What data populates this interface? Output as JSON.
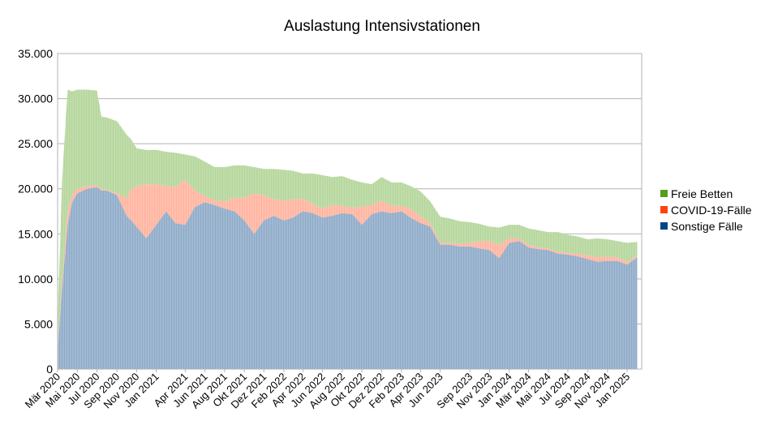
{
  "chart_data": {
    "type": "area",
    "stacked": true,
    "title": "Auslastung Intensivstationen",
    "xlabel": "",
    "ylabel": "",
    "ylim": [
      0,
      35000
    ],
    "yticks": [
      0,
      5000,
      10000,
      15000,
      20000,
      25000,
      30000,
      35000
    ],
    "ytick_labels": [
      "0",
      "5.000",
      "10.000",
      "15.000",
      "20.000",
      "25.000",
      "30.000",
      "35.000"
    ],
    "grid": true,
    "legend_position": "right",
    "xticks": [
      "Mär 2020",
      "Mai 2020",
      "Jul 2020",
      "Sep 2020",
      "Nov 2020",
      "Jan 2021",
      "Apr 2021",
      "Jun 2021",
      "Aug 2021",
      "Okt 2021",
      "Dez 2021",
      "Feb 2022",
      "Apr 2022",
      "Jun 2022",
      "Aug 2022",
      "Okt 2022",
      "Dez 2022",
      "Feb 2023",
      "Apr 2023",
      "Jun 2023",
      "Sep 2023",
      "Nov 2023",
      "Jan 2024",
      "Mär 2024",
      "Mai 2024",
      "Jul 2024",
      "Sep 2024",
      "Nov 2024",
      "Jan 2025"
    ],
    "x": [
      "2020-03",
      "2020-03-15",
      "2020-04",
      "2020-04-15",
      "2020-05",
      "2020-06",
      "2020-07",
      "2020-07-15",
      "2020-08",
      "2020-09",
      "2020-10",
      "2020-10-15",
      "2020-11",
      "2020-12",
      "2021-01",
      "2021-02",
      "2021-03",
      "2021-04",
      "2021-05",
      "2021-06",
      "2021-07",
      "2021-08",
      "2021-09",
      "2021-10",
      "2021-11",
      "2021-12",
      "2022-01",
      "2022-02",
      "2022-03",
      "2022-04",
      "2022-05",
      "2022-06",
      "2022-07",
      "2022-08",
      "2022-09",
      "2022-10",
      "2022-11",
      "2022-12",
      "2023-01",
      "2023-02",
      "2023-03",
      "2023-04",
      "2023-05",
      "2023-06",
      "2023-07",
      "2023-08",
      "2023-09",
      "2023-10",
      "2023-11",
      "2023-12",
      "2024-01",
      "2024-02",
      "2024-03",
      "2024-04",
      "2024-05",
      "2024-06",
      "2024-07",
      "2024-08",
      "2024-09",
      "2024-10",
      "2024-11",
      "2024-12",
      "2025-01",
      "2025-02"
    ],
    "series": [
      {
        "name": "Sonstige Fälle",
        "color": "#004586",
        "values": [
          2000,
          9000,
          16000,
          18500,
          19500,
          20000,
          20200,
          19800,
          19800,
          19300,
          17000,
          16500,
          15800,
          14500,
          16000,
          17500,
          16200,
          16000,
          18000,
          18500,
          18200,
          17800,
          17500,
          16500,
          15000,
          16500,
          17000,
          16500,
          16800,
          17500,
          17300,
          16800,
          17000,
          17300,
          17200,
          16000,
          17200,
          17500,
          17300,
          17500,
          16800,
          16200,
          15800,
          13800,
          13800,
          13600,
          13600,
          13400,
          13200,
          12300,
          14000,
          14200,
          13500,
          13300,
          13200,
          12800,
          12700,
          12500,
          12200,
          11900,
          12000,
          12000,
          11600,
          12400
        ]
      },
      {
        "name": "COVID-19-Fälle",
        "color": "#ff420e",
        "values": [
          200,
          1000,
          1500,
          800,
          500,
          300,
          200,
          200,
          100,
          200,
          2000,
          3500,
          4500,
          6000,
          4500,
          2800,
          4000,
          5000,
          1800,
          700,
          500,
          800,
          1500,
          2500,
          4500,
          2800,
          1800,
          2200,
          2000,
          1400,
          1000,
          1000,
          1200,
          800,
          700,
          2000,
          1000,
          1200,
          800,
          600,
          1000,
          700,
          400,
          200,
          200,
          300,
          400,
          800,
          1000,
          1500,
          500,
          300,
          300,
          200,
          200,
          200,
          200,
          300,
          400,
          500,
          500,
          400,
          300,
          200
        ]
      },
      {
        "name": "Freie Betten",
        "color": "#579d1c",
        "values": [
          2800,
          11000,
          13500,
          11500,
          11000,
          10700,
          10500,
          8000,
          8000,
          8000,
          7000,
          5500,
          4200,
          3800,
          3800,
          3800,
          3800,
          2800,
          3800,
          3800,
          3700,
          3800,
          3600,
          3600,
          2900,
          2900,
          3400,
          3400,
          3200,
          2800,
          3400,
          3700,
          3100,
          3300,
          3100,
          2700,
          2300,
          2600,
          2600,
          2600,
          2500,
          2800,
          2400,
          2900,
          2700,
          2500,
          2300,
          1900,
          1600,
          1900,
          1500,
          1500,
          1800,
          1900,
          1800,
          2200,
          2000,
          1900,
          1800,
          2100,
          1900,
          1800,
          2100,
          1500
        ]
      }
    ]
  }
}
